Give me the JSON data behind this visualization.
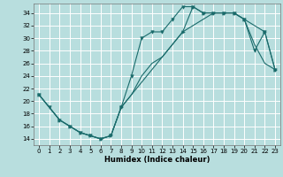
{
  "title": "",
  "xlabel": "Humidex (Indice chaleur)",
  "bg_color": "#b8dede",
  "line_color": "#1a6b6b",
  "grid_color": "#ffffff",
  "xlim": [
    -0.5,
    23.5
  ],
  "ylim": [
    13,
    35.5
  ],
  "xticks": [
    0,
    1,
    2,
    3,
    4,
    5,
    6,
    7,
    8,
    9,
    10,
    11,
    12,
    13,
    14,
    15,
    16,
    17,
    18,
    19,
    20,
    21,
    22,
    23
  ],
  "yticks": [
    14,
    16,
    18,
    20,
    22,
    24,
    26,
    28,
    30,
    32,
    34
  ],
  "line1_x": [
    0,
    1,
    2,
    3,
    4,
    5,
    6,
    7,
    8,
    9,
    10,
    11,
    12,
    13,
    14,
    15,
    16,
    17,
    18,
    19,
    20,
    21,
    22,
    23
  ],
  "line1_y": [
    21,
    19,
    17,
    16,
    15,
    14.5,
    14,
    14.5,
    19,
    24,
    30,
    31,
    31,
    33,
    35,
    35,
    34,
    34,
    34,
    34,
    33,
    28,
    31,
    25
  ],
  "line2_x": [
    0,
    1,
    2,
    3,
    4,
    5,
    6,
    7,
    8,
    9,
    10,
    11,
    12,
    13,
    14,
    15,
    16,
    17,
    18,
    19,
    20,
    21,
    22,
    23
  ],
  "line2_y": [
    21,
    19,
    17,
    16,
    15,
    14.5,
    14,
    14.5,
    19,
    21,
    24,
    26,
    27,
    29,
    31,
    32,
    33,
    34,
    34,
    34,
    33,
    29,
    26,
    25
  ],
  "line3_x": [
    0,
    2,
    3,
    4,
    5,
    6,
    7,
    8,
    14,
    15,
    16,
    17,
    18,
    19,
    20,
    22,
    23
  ],
  "line3_y": [
    21,
    17,
    16,
    15,
    14.5,
    14,
    14.5,
    19,
    31,
    35,
    34,
    34,
    34,
    34,
    33,
    31,
    25
  ]
}
